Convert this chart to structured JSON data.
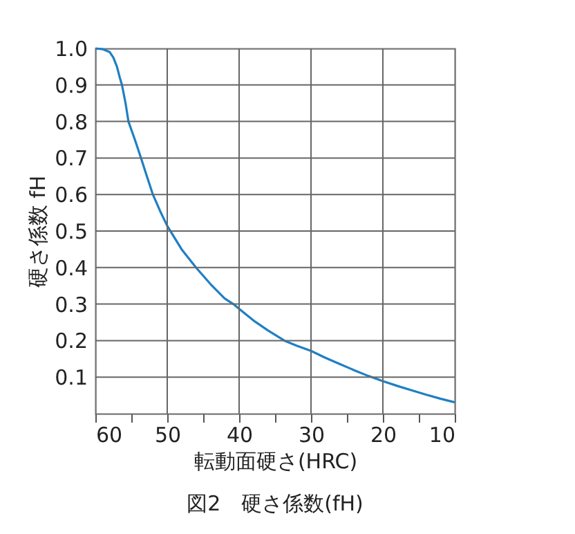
{
  "chart_data": {
    "type": "line",
    "xlabel": "転動面硬さ(HRC)",
    "ylabel": "硬さ係数 fH",
    "annotations": [
      "図2　硬さ係数(fH)"
    ],
    "x": [
      60,
      59,
      58,
      57.5,
      57,
      56.6,
      56.3,
      55.8,
      55.4,
      54.5,
      53.65,
      53,
      52,
      51,
      50,
      48,
      46,
      44,
      42,
      40.8,
      40,
      38,
      36,
      33.7,
      32,
      30,
      28,
      26,
      24,
      22,
      20,
      18,
      16,
      14,
      12,
      10
    ],
    "series": [
      {
        "color": "#1f7fc4",
        "values": [
          1.0,
          0.998,
          0.99,
          0.975,
          0.95,
          0.92,
          0.9,
          0.85,
          0.8,
          0.75,
          0.7,
          0.66,
          0.6,
          0.555,
          0.514,
          0.45,
          0.4,
          0.355,
          0.315,
          0.3,
          0.287,
          0.255,
          0.228,
          0.2,
          0.186,
          0.172,
          0.153,
          0.136,
          0.119,
          0.103,
          0.089,
          0.076,
          0.064,
          0.052,
          0.041,
          0.031
        ]
      }
    ],
    "xlim": [
      60,
      10
    ],
    "xticks": [
      60,
      {
        "value": 55,
        "label": null
      },
      50,
      {
        "value": 45,
        "label": null
      },
      40,
      {
        "value": 35,
        "label": null
      },
      30,
      {
        "value": 25,
        "label": null
      },
      20,
      {
        "value": 15,
        "label": null
      },
      10
    ],
    "ylim": [
      0,
      1.0
    ],
    "yticks": [
      {
        "value": 0,
        "label": null
      },
      0.1,
      0.2,
      0.3,
      0.4,
      0.5,
      0.6,
      0.7,
      0.8,
      0.9,
      {
        "value": 1.0,
        "label": "1.0"
      }
    ],
    "grid": true,
    "marker": "none",
    "line_style": "solid",
    "legend": false
  }
}
